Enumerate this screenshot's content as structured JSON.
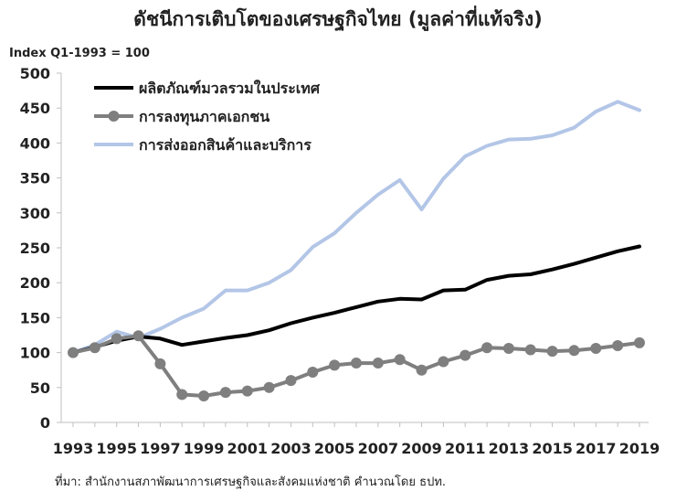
{
  "chart_data": {
    "type": "line",
    "title": "ดัชนีการเติบโตของเศรษฐกิจไทย (มูลค่าที่แท้จริง)",
    "ylabel": "Index Q1-1993 = 100",
    "xlabel": "",
    "ylim": [
      0,
      500
    ],
    "yticks": [
      "0",
      "50",
      "100",
      "150",
      "200",
      "250",
      "300",
      "350",
      "400",
      "450",
      "500"
    ],
    "xlim": [
      1993,
      2019
    ],
    "xticks": [
      "1993",
      "1995",
      "1997",
      "1999",
      "2001",
      "2003",
      "2005",
      "2007",
      "2009",
      "2011",
      "2013",
      "2015",
      "2017",
      "2019"
    ],
    "grid": false,
    "legend": "top-left",
    "x": [
      1993,
      1994,
      1995,
      1996,
      1997,
      1998,
      1999,
      2000,
      2001,
      2002,
      2003,
      2004,
      2005,
      2006,
      2007,
      2008,
      2009,
      2010,
      2011,
      2012,
      2013,
      2014,
      2015,
      2016,
      2017,
      2018,
      2019
    ],
    "series": [
      {
        "name": "ผลิตภัณฑ์มวลรวมในประเทศ",
        "color": "#000000",
        "marker": "none",
        "values": [
          100,
          108,
          117,
          123,
          120,
          111,
          116,
          121,
          125,
          132,
          142,
          150,
          157,
          165,
          173,
          177,
          176,
          189,
          190,
          204,
          210,
          212,
          219,
          227,
          236,
          245,
          252
        ]
      },
      {
        "name": "การลงทุนภาคเอกชน",
        "color": "#7f7f7f",
        "marker": "circle",
        "values": [
          100,
          107,
          120,
          124,
          84,
          40,
          38,
          43,
          45,
          50,
          60,
          72,
          82,
          85,
          85,
          90,
          75,
          87,
          96,
          107,
          106,
          104,
          102,
          103,
          106,
          110,
          114
        ]
      },
      {
        "name": "การส่งออกสินค้าและบริการ",
        "color": "#b3c6e7",
        "marker": "none",
        "values": [
          100,
          111,
          130,
          121,
          134,
          150,
          163,
          189,
          189,
          200,
          218,
          251,
          271,
          300,
          326,
          347,
          305,
          349,
          381,
          396,
          405,
          406,
          411,
          422,
          445,
          459,
          447
        ]
      }
    ],
    "source": "ที่มา: สำนักงานสภาพัฒนาการเศรษฐกิจและสังคมแห่งชาติ คำนวณโดย ธปท."
  }
}
